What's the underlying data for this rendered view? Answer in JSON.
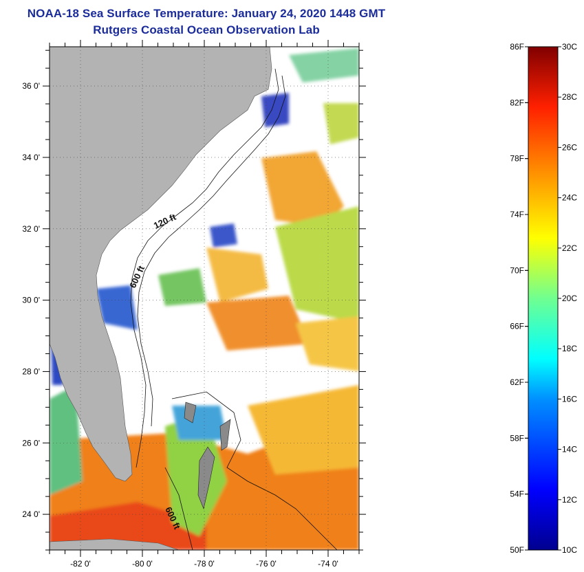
{
  "header": {
    "title": "NOAA-18 Sea Surface Temperature:  January 24, 2020 1448 GMT",
    "subtitle": "Rutgers Coastal Ocean Observation Lab"
  },
  "map": {
    "lat_labels": [
      "36 0'",
      "34 0'",
      "32 0'",
      "30 0'",
      "28 0'",
      "26 0'",
      "24 0'"
    ],
    "lat_values": [
      36,
      34,
      32,
      30,
      28,
      26,
      24
    ],
    "lon_labels": [
      "-82 0'",
      "-80 0'",
      "-78 0'",
      "-76 0'",
      "-74 0'"
    ],
    "lon_values": [
      -82,
      -80,
      -78,
      -76,
      -74
    ],
    "lat_range": [
      23,
      37.1
    ],
    "lon_range": [
      -83,
      -73
    ],
    "land_color": "#b3b3b3",
    "contour_labels": [
      "120 ft",
      "600 ft",
      "600 ft"
    ]
  },
  "colorbar": {
    "min_c": 10,
    "max_c": 30,
    "fahrenheit_labels": [
      "86F",
      "82F",
      "78F",
      "74F",
      "70F",
      "66F",
      "62F",
      "58F",
      "54F",
      "50F"
    ],
    "fahrenheit_values": [
      86,
      82,
      78,
      74,
      70,
      66,
      62,
      58,
      54,
      50
    ],
    "celsius_labels": [
      "30C",
      "28C",
      "26C",
      "24C",
      "22C",
      "20C",
      "18C",
      "16C",
      "14C",
      "12C",
      "10C"
    ],
    "celsius_values": [
      30,
      28,
      26,
      24,
      22,
      20,
      18,
      16,
      14,
      12,
      10
    ]
  }
}
